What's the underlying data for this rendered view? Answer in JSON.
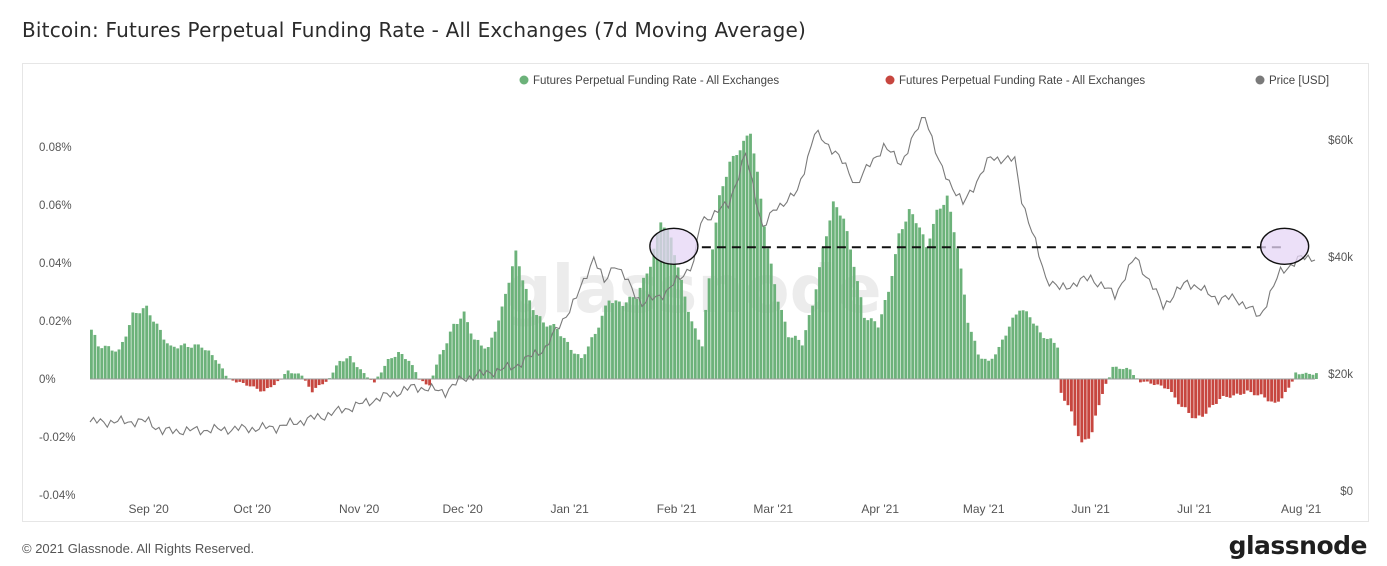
{
  "title": "Bitcoin: Futures Perpetual Funding Rate - All Exchanges (7d Moving Average)",
  "footer": "© 2021 Glassnode. All Rights Reserved.",
  "brand": "glassnode",
  "watermark": "glassnode",
  "colors": {
    "positive": "#6cb27a",
    "negative": "#c7463f",
    "price": "#7a7a7a",
    "highlight_fill": "#e6d5f5",
    "axis_text": "#555555"
  },
  "chart_data": {
    "type": "bar",
    "legend": [
      {
        "name": "Futures Perpetual Funding Rate - All Exchanges",
        "color": "#6cb27a"
      },
      {
        "name": "Futures Perpetual Funding Rate - All Exchanges",
        "color": "#c7463f"
      },
      {
        "name": "Price [USD]",
        "color": "#7a7a7a"
      }
    ],
    "legend_position": "top-right",
    "y_left": {
      "ticks": [
        "-0.04%",
        "-0.02%",
        "0%",
        "0.02%",
        "0.04%",
        "0.06%",
        "0.08%"
      ],
      "values": [
        -0.04,
        -0.02,
        0,
        0.02,
        0.04,
        0.06,
        0.08
      ],
      "range": [
        -0.04,
        0.09
      ]
    },
    "y_right": {
      "ticks": [
        "$0",
        "$20k",
        "$40k",
        "$60k"
      ],
      "values": [
        0,
        20000,
        40000,
        60000
      ],
      "range": [
        0,
        80000
      ]
    },
    "x_ticks": [
      "Sep '20",
      "Oct '20",
      "Nov '20",
      "Dec '20",
      "Jan '21",
      "Feb '21",
      "Mar '21",
      "Apr '21",
      "May '21",
      "Jun '21",
      "Jul '21",
      "Aug '21"
    ],
    "x_range": [
      "2020-08-15",
      "2021-08-05"
    ],
    "funding_rate_keypoints": [
      [
        "2020-08-15",
        0.017
      ],
      [
        "2020-08-17",
        0.011
      ],
      [
        "2020-08-23",
        0.01
      ],
      [
        "2020-08-27",
        0.022
      ],
      [
        "2020-08-31",
        0.024
      ],
      [
        "2020-09-04",
        0.017
      ],
      [
        "2020-09-07",
        0.011
      ],
      [
        "2020-09-12",
        0.011
      ],
      [
        "2020-09-16",
        0.012
      ],
      [
        "2020-09-20",
        0.007
      ],
      [
        "2020-09-23",
        0.001
      ],
      [
        "2020-09-26",
        -0.001
      ],
      [
        "2020-10-01",
        -0.003
      ],
      [
        "2020-10-04",
        -0.004
      ],
      [
        "2020-10-08",
        -0.001
      ],
      [
        "2020-10-11",
        0.003
      ],
      [
        "2020-10-15",
        0.001
      ],
      [
        "2020-10-18",
        -0.004
      ],
      [
        "2020-10-22",
        -0.001
      ],
      [
        "2020-10-26",
        0.006
      ],
      [
        "2020-10-29",
        0.007
      ],
      [
        "2020-11-02",
        0.002
      ],
      [
        "2020-11-05",
        -0.001
      ],
      [
        "2020-11-09",
        0.006
      ],
      [
        "2020-11-12",
        0.009
      ],
      [
        "2020-11-15",
        0.007
      ],
      [
        "2020-11-18",
        0.0
      ],
      [
        "2020-11-21",
        -0.002
      ],
      [
        "2020-11-24",
        0.008
      ],
      [
        "2020-11-28",
        0.019
      ],
      [
        "2020-12-01",
        0.022
      ],
      [
        "2020-12-04",
        0.013
      ],
      [
        "2020-12-08",
        0.011
      ],
      [
        "2020-12-12",
        0.024
      ],
      [
        "2020-12-16",
        0.043
      ],
      [
        "2020-12-20",
        0.027
      ],
      [
        "2020-12-24",
        0.019
      ],
      [
        "2020-12-28",
        0.017
      ],
      [
        "2021-01-01",
        0.011
      ],
      [
        "2021-01-04",
        0.007
      ],
      [
        "2021-01-08",
        0.015
      ],
      [
        "2021-01-12",
        0.028
      ],
      [
        "2021-01-16",
        0.026
      ],
      [
        "2021-01-20",
        0.028
      ],
      [
        "2021-01-24",
        0.04
      ],
      [
        "2021-01-27",
        0.055
      ],
      [
        "2021-01-30",
        0.048
      ],
      [
        "2021-02-02",
        0.033
      ],
      [
        "2021-02-05",
        0.02
      ],
      [
        "2021-02-08",
        0.012
      ],
      [
        "2021-02-11",
        0.045
      ],
      [
        "2021-02-13",
        0.062
      ],
      [
        "2021-02-16",
        0.075
      ],
      [
        "2021-02-19",
        0.08
      ],
      [
        "2021-02-22",
        0.085
      ],
      [
        "2021-02-24",
        0.07
      ],
      [
        "2021-02-27",
        0.045
      ],
      [
        "2021-03-02",
        0.028
      ],
      [
        "2021-03-05",
        0.015
      ],
      [
        "2021-03-09",
        0.012
      ],
      [
        "2021-03-12",
        0.026
      ],
      [
        "2021-03-15",
        0.045
      ],
      [
        "2021-03-18",
        0.06
      ],
      [
        "2021-03-21",
        0.055
      ],
      [
        "2021-03-24",
        0.04
      ],
      [
        "2021-03-27",
        0.022
      ],
      [
        "2021-03-31",
        0.018
      ],
      [
        "2021-04-03",
        0.03
      ],
      [
        "2021-04-06",
        0.05
      ],
      [
        "2021-04-09",
        0.058
      ],
      [
        "2021-04-12",
        0.052
      ],
      [
        "2021-04-14",
        0.045
      ],
      [
        "2021-04-17",
        0.058
      ],
      [
        "2021-04-20",
        0.063
      ],
      [
        "2021-04-23",
        0.045
      ],
      [
        "2021-04-26",
        0.02
      ],
      [
        "2021-04-29",
        0.009
      ],
      [
        "2021-05-02",
        0.006
      ],
      [
        "2021-05-05",
        0.01
      ],
      [
        "2021-05-08",
        0.018
      ],
      [
        "2021-05-11",
        0.025
      ],
      [
        "2021-05-14",
        0.022
      ],
      [
        "2021-05-17",
        0.015
      ],
      [
        "2021-05-20",
        0.013
      ],
      [
        "2021-05-22",
        0.012
      ],
      [
        "2021-05-23",
        -0.005
      ],
      [
        "2021-05-26",
        -0.012
      ],
      [
        "2021-05-29",
        -0.022
      ],
      [
        "2021-06-01",
        -0.018
      ],
      [
        "2021-06-04",
        -0.005
      ],
      [
        "2021-06-07",
        0.004
      ],
      [
        "2021-06-12",
        0.003
      ],
      [
        "2021-06-15",
        -0.001
      ],
      [
        "2021-06-20",
        -0.002
      ],
      [
        "2021-06-23",
        -0.003
      ],
      [
        "2021-06-27",
        -0.01
      ],
      [
        "2021-07-01",
        -0.014
      ],
      [
        "2021-07-04",
        -0.011
      ],
      [
        "2021-07-08",
        -0.007
      ],
      [
        "2021-07-12",
        -0.006
      ],
      [
        "2021-07-16",
        -0.004
      ],
      [
        "2021-07-20",
        -0.006
      ],
      [
        "2021-07-24",
        -0.009
      ],
      [
        "2021-07-28",
        -0.003
      ],
      [
        "2021-07-30",
        0.002
      ],
      [
        "2021-08-05",
        0.002
      ]
    ],
    "price_keypoints": [
      [
        "2020-08-15",
        11800
      ],
      [
        "2020-09-01",
        11900
      ],
      [
        "2020-09-05",
        10200
      ],
      [
        "2020-10-01",
        10700
      ],
      [
        "2020-10-08",
        10900
      ],
      [
        "2020-10-22",
        12900
      ],
      [
        "2020-11-05",
        15500
      ],
      [
        "2020-11-17",
        17800
      ],
      [
        "2020-11-26",
        17000
      ],
      [
        "2020-12-01",
        19200
      ],
      [
        "2020-12-16",
        21300
      ],
      [
        "2020-12-25",
        24500
      ],
      [
        "2021-01-03",
        33000
      ],
      [
        "2021-01-08",
        40000
      ],
      [
        "2021-01-11",
        35500
      ],
      [
        "2021-01-14",
        39000
      ],
      [
        "2021-01-22",
        32000
      ],
      [
        "2021-01-29",
        34000
      ],
      [
        "2021-02-06",
        39000
      ],
      [
        "2021-02-08",
        46000
      ],
      [
        "2021-02-16",
        49000
      ],
      [
        "2021-02-21",
        57500
      ],
      [
        "2021-02-26",
        45000
      ],
      [
        "2021-03-02",
        48500
      ],
      [
        "2021-03-08",
        51000
      ],
      [
        "2021-03-13",
        61200
      ],
      [
        "2021-03-19",
        58000
      ],
      [
        "2021-03-25",
        52500
      ],
      [
        "2021-04-02",
        59000
      ],
      [
        "2021-04-07",
        56000
      ],
      [
        "2021-04-14",
        64500
      ],
      [
        "2021-04-18",
        56000
      ],
      [
        "2021-04-25",
        49000
      ],
      [
        "2021-05-03",
        57000
      ],
      [
        "2021-05-10",
        56500
      ],
      [
        "2021-05-12",
        50000
      ],
      [
        "2021-05-19",
        36500
      ],
      [
        "2021-05-23",
        34500
      ],
      [
        "2021-06-01",
        36500
      ],
      [
        "2021-06-08",
        33500
      ],
      [
        "2021-06-14",
        40000
      ],
      [
        "2021-06-22",
        31700
      ],
      [
        "2021-06-29",
        35800
      ],
      [
        "2021-07-08",
        32800
      ],
      [
        "2021-07-13",
        33000
      ],
      [
        "2021-07-20",
        29800
      ],
      [
        "2021-07-26",
        37500
      ],
      [
        "2021-08-01",
        39800
      ],
      [
        "2021-08-05",
        40000
      ]
    ],
    "annotations": {
      "reference_line_value": 0.043,
      "reference_line_from": "2021-02-06",
      "reference_line_to": "2021-08-02",
      "circle_dates": [
        "2021-02-06",
        "2021-08-02"
      ],
      "style": "dashed"
    }
  }
}
